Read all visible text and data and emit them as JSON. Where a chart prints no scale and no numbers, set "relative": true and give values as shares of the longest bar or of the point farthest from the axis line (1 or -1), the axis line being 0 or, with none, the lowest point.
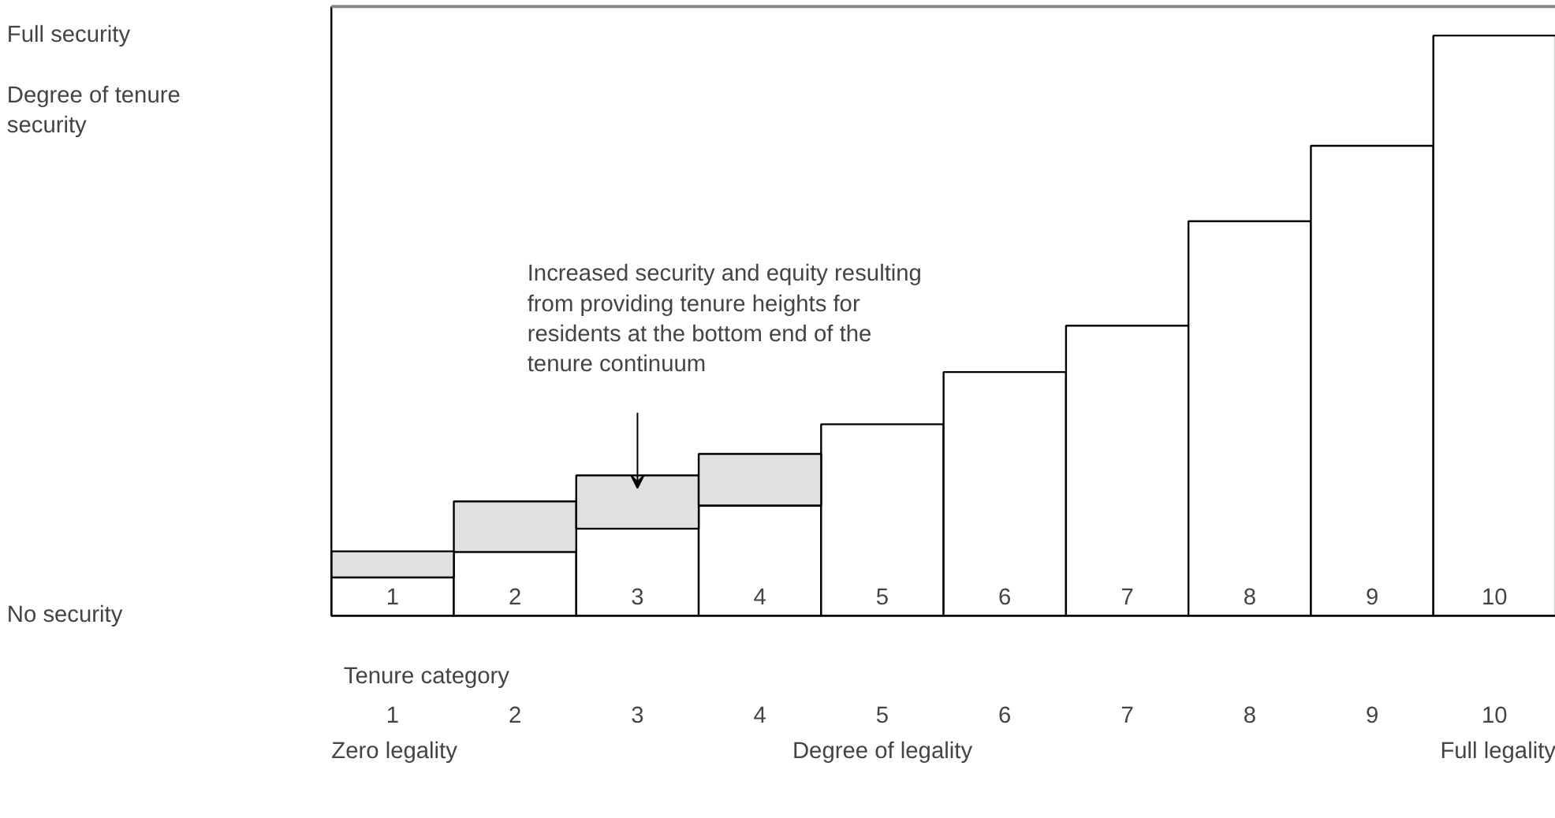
{
  "chart_data": {
    "type": "bar",
    "relative": true,
    "stacked": true,
    "xlabel": "Tenure category",
    "categories": [
      "1",
      "2",
      "3",
      "4",
      "5",
      "6",
      "7",
      "8",
      "9",
      "10"
    ],
    "series": [
      {
        "color": "#ffffff",
        "values": [
          0.066,
          0.11,
          0.15,
          0.19,
          0.33,
          0.42,
          0.5,
          0.68,
          0.81,
          1
        ]
      },
      {
        "color": "#e0e0e0",
        "values": [
          0.045,
          0.087,
          0.092,
          0.089,
          null,
          null,
          null,
          null,
          null,
          null
        ]
      }
    ],
    "annotations": [
      "Full security",
      "Degree of tenure security",
      "No security",
      "Increased security and equity resulting from providing tenure heights for residents at the bottom end of the tenure continuum",
      "Zero legality",
      "Degree of legality",
      "Full legality"
    ]
  }
}
